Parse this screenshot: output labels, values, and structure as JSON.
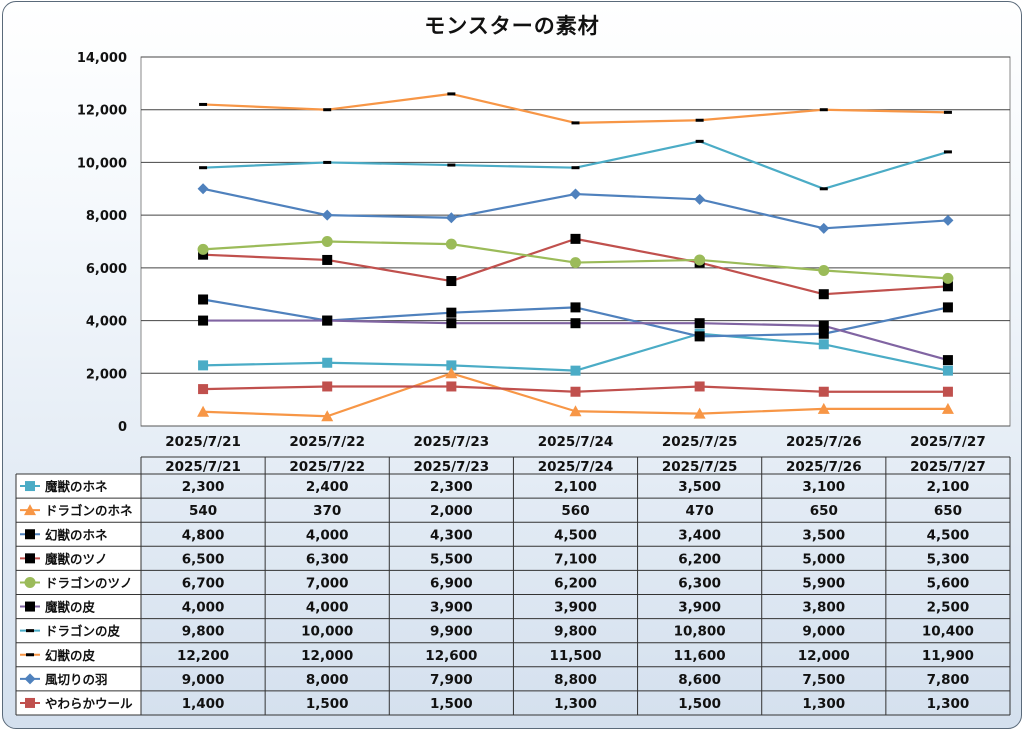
{
  "chart_data": {
    "type": "line",
    "title": "モンスターの素材",
    "xlabel": "",
    "ylabel": "",
    "ylim": [
      0,
      14000
    ],
    "yticks": [
      "0",
      "2,000",
      "4,000",
      "6,000",
      "8,000",
      "10,000",
      "12,000",
      "14,000"
    ],
    "grid": true,
    "legend": "data-table-below",
    "categories": [
      "2025/7/21",
      "2025/7/22",
      "2025/7/23",
      "2025/7/24",
      "2025/7/25",
      "2025/7/26",
      "2025/7/27"
    ],
    "series": [
      {
        "name": "魔獣のホネ",
        "color": "#4bacc6",
        "marker": "square",
        "values": [
          2300,
          2400,
          2300,
          2100,
          3500,
          3100,
          2100
        ],
        "labels": [
          "2,300",
          "2,400",
          "2,300",
          "2,100",
          "3,500",
          "3,100",
          "2,100"
        ]
      },
      {
        "name": "ドラゴンのホネ",
        "color": "#f79646",
        "marker": "triangle",
        "values": [
          540,
          370,
          2000,
          560,
          470,
          650,
          650
        ],
        "labels": [
          "540",
          "370",
          "2,000",
          "560",
          "470",
          "650",
          "650"
        ]
      },
      {
        "name": "幻獣のホネ",
        "color": "#4f81bd",
        "markerColor": "#000000",
        "marker": "square",
        "values": [
          4800,
          4000,
          4300,
          4500,
          3400,
          3500,
          4500
        ],
        "labels": [
          "4,800",
          "4,000",
          "4,300",
          "4,500",
          "3,400",
          "3,500",
          "4,500"
        ]
      },
      {
        "name": "魔獣のツノ",
        "color": "#c0504d",
        "markerColor": "#000000",
        "marker": "square",
        "values": [
          6500,
          6300,
          5500,
          7100,
          6200,
          5000,
          5300
        ],
        "labels": [
          "6,500",
          "6,300",
          "5,500",
          "7,100",
          "6,200",
          "5,000",
          "5,300"
        ]
      },
      {
        "name": "ドラゴンのツノ",
        "color": "#9bbb59",
        "marker": "circle",
        "values": [
          6700,
          7000,
          6900,
          6200,
          6300,
          5900,
          5600
        ],
        "labels": [
          "6,700",
          "7,000",
          "6,900",
          "6,200",
          "6,300",
          "5,900",
          "5,600"
        ]
      },
      {
        "name": "魔獣の皮",
        "color": "#8064a2",
        "markerColor": "#000000",
        "marker": "square",
        "values": [
          4000,
          4000,
          3900,
          3900,
          3900,
          3800,
          2500
        ],
        "labels": [
          "4,000",
          "4,000",
          "3,900",
          "3,900",
          "3,900",
          "3,800",
          "2,500"
        ]
      },
      {
        "name": "ドラゴンの皮",
        "color": "#4bacc6",
        "markerColor": "#000000",
        "marker": "dash",
        "values": [
          9800,
          10000,
          9900,
          9800,
          10800,
          9000,
          10400
        ],
        "labels": [
          "9,800",
          "10,000",
          "9,900",
          "9,800",
          "10,800",
          "9,000",
          "10,400"
        ]
      },
      {
        "name": "幻獣の皮",
        "color": "#f79646",
        "markerColor": "#000000",
        "marker": "dash",
        "values": [
          12200,
          12000,
          12600,
          11500,
          11600,
          12000,
          11900
        ],
        "labels": [
          "12,200",
          "12,000",
          "12,600",
          "11,500",
          "11,600",
          "12,000",
          "11,900"
        ]
      },
      {
        "name": "風切りの羽",
        "color": "#4f81bd",
        "marker": "diamond",
        "values": [
          9000,
          8000,
          7900,
          8800,
          8600,
          7500,
          7800
        ],
        "labels": [
          "9,000",
          "8,000",
          "7,900",
          "8,800",
          "8,600",
          "7,500",
          "7,800"
        ]
      },
      {
        "name": "やわらかウール",
        "color": "#c0504d",
        "marker": "square",
        "values": [
          1400,
          1500,
          1500,
          1300,
          1500,
          1300,
          1300
        ],
        "labels": [
          "1,400",
          "1,500",
          "1,500",
          "1,300",
          "1,500",
          "1,300",
          "1,300"
        ]
      }
    ]
  }
}
